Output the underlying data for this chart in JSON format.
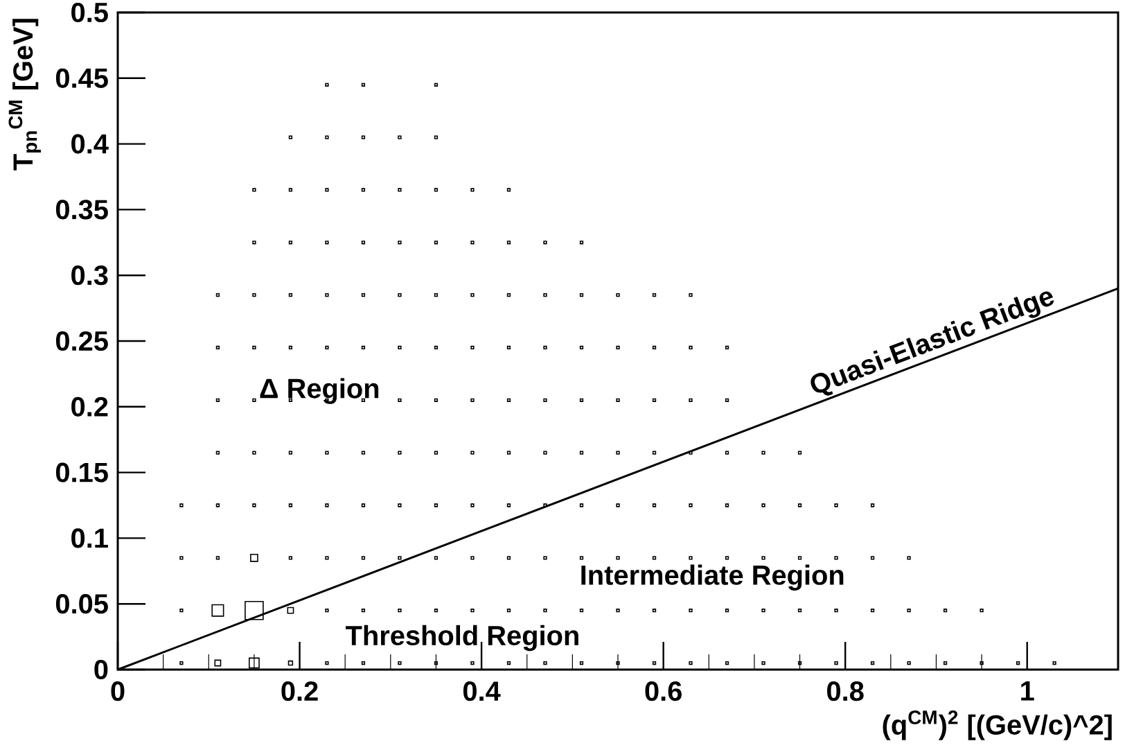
{
  "chart_data": {
    "type": "bubble",
    "xlabel": "(q$^{CM}$)$^{2}$ [(GeV/c)^2]",
    "ylabel": "T$_{pn}$$^{CM}$ [GeV]",
    "xlim": [
      0,
      1.1
    ],
    "ylim": [
      0,
      0.5
    ],
    "xticks": [
      0,
      0.2,
      0.4,
      0.6,
      0.8,
      1
    ],
    "yticks": [
      0,
      0.05,
      0.1,
      0.15,
      0.2,
      0.25,
      0.3,
      0.35,
      0.4,
      0.45,
      0.5
    ],
    "annotations": [
      "Δ Region",
      "Intermediate Region",
      "Threshold Region"
    ],
    "series": [
      {
        "type": "bubble",
        "color": "#000000",
        "marker": "square",
        "x": [
          0.07,
          0.07,
          0.07,
          0.07,
          0.11,
          0.11,
          0.11,
          0.11,
          0.11,
          0.11,
          0.11,
          0.11,
          0.15,
          0.15,
          0.15,
          0.15,
          0.15,
          0.15,
          0.15,
          0.15,
          0.15,
          0.15,
          0.19,
          0.19,
          0.19,
          0.19,
          0.19,
          0.19,
          0.19,
          0.19,
          0.19,
          0.19,
          0.19,
          0.23,
          0.23,
          0.23,
          0.23,
          0.23,
          0.23,
          0.23,
          0.23,
          0.23,
          0.23,
          0.23,
          0.23,
          0.27,
          0.27,
          0.27,
          0.27,
          0.27,
          0.27,
          0.27,
          0.27,
          0.27,
          0.27,
          0.27,
          0.27,
          0.31,
          0.31,
          0.31,
          0.31,
          0.31,
          0.31,
          0.31,
          0.31,
          0.31,
          0.31,
          0.31,
          0.35,
          0.35,
          0.35,
          0.35,
          0.35,
          0.35,
          0.35,
          0.35,
          0.35,
          0.35,
          0.35,
          0.35,
          0.39,
          0.39,
          0.39,
          0.39,
          0.39,
          0.39,
          0.39,
          0.39,
          0.39,
          0.39,
          0.43,
          0.43,
          0.43,
          0.43,
          0.43,
          0.43,
          0.43,
          0.43,
          0.43,
          0.43,
          0.47,
          0.47,
          0.47,
          0.47,
          0.47,
          0.47,
          0.47,
          0.47,
          0.47,
          0.51,
          0.51,
          0.51,
          0.51,
          0.51,
          0.51,
          0.51,
          0.51,
          0.51,
          0.55,
          0.55,
          0.55,
          0.55,
          0.55,
          0.55,
          0.55,
          0.55,
          0.59,
          0.59,
          0.59,
          0.59,
          0.59,
          0.59,
          0.59,
          0.59,
          0.63,
          0.63,
          0.63,
          0.63,
          0.63,
          0.63,
          0.63,
          0.63,
          0.67,
          0.67,
          0.67,
          0.67,
          0.67,
          0.67,
          0.67,
          0.71,
          0.71,
          0.71,
          0.71,
          0.71,
          0.75,
          0.75,
          0.75,
          0.75,
          0.75,
          0.79,
          0.79,
          0.79,
          0.79,
          0.83,
          0.83,
          0.83,
          0.83,
          0.87,
          0.87,
          0.87,
          0.91,
          0.91,
          0.95,
          0.95,
          0.99,
          1.03
        ],
        "values": [
          0.005,
          0.045,
          0.085,
          0.125,
          0.005,
          0.045,
          0.085,
          0.125,
          0.165,
          0.205,
          0.245,
          0.285,
          0.005,
          0.045,
          0.085,
          0.125,
          0.165,
          0.205,
          0.245,
          0.285,
          0.325,
          0.365,
          0.005,
          0.045,
          0.085,
          0.125,
          0.165,
          0.205,
          0.245,
          0.285,
          0.325,
          0.365,
          0.405,
          0.005,
          0.045,
          0.085,
          0.125,
          0.165,
          0.205,
          0.245,
          0.285,
          0.325,
          0.365,
          0.405,
          0.445,
          0.005,
          0.045,
          0.085,
          0.125,
          0.165,
          0.205,
          0.245,
          0.285,
          0.325,
          0.365,
          0.405,
          0.445,
          0.005,
          0.045,
          0.085,
          0.125,
          0.165,
          0.205,
          0.245,
          0.285,
          0.325,
          0.365,
          0.405,
          0.005,
          0.045,
          0.085,
          0.125,
          0.165,
          0.205,
          0.245,
          0.285,
          0.325,
          0.365,
          0.405,
          0.445,
          0.005,
          0.045,
          0.085,
          0.125,
          0.165,
          0.205,
          0.245,
          0.285,
          0.325,
          0.365,
          0.005,
          0.045,
          0.085,
          0.125,
          0.165,
          0.205,
          0.245,
          0.285,
          0.325,
          0.365,
          0.005,
          0.045,
          0.085,
          0.125,
          0.165,
          0.205,
          0.245,
          0.285,
          0.325,
          0.005,
          0.045,
          0.085,
          0.125,
          0.165,
          0.205,
          0.245,
          0.285,
          0.325,
          0.005,
          0.045,
          0.085,
          0.125,
          0.165,
          0.205,
          0.245,
          0.285,
          0.005,
          0.045,
          0.085,
          0.125,
          0.165,
          0.205,
          0.245,
          0.285,
          0.005,
          0.045,
          0.085,
          0.125,
          0.165,
          0.205,
          0.245,
          0.285,
          0.005,
          0.045,
          0.085,
          0.125,
          0.165,
          0.205,
          0.245,
          0.005,
          0.045,
          0.085,
          0.125,
          0.165,
          0.005,
          0.045,
          0.085,
          0.125,
          0.165,
          0.005,
          0.045,
          0.085,
          0.125,
          0.005,
          0.045,
          0.085,
          0.125,
          0.005,
          0.045,
          0.085,
          0.005,
          0.045,
          0.005,
          0.045,
          0.005,
          0.005
        ],
        "sizes": [
          0.02,
          0.02,
          0.02,
          0.02,
          0.1,
          0.4,
          0.02,
          0.02,
          0.02,
          0.02,
          0.02,
          0.02,
          0.3,
          1,
          0.15,
          0.02,
          0.02,
          0.02,
          0.02,
          0.02,
          0.02,
          0.02,
          0.05,
          0.1,
          0.02,
          0.02,
          0.02,
          0.02,
          0.02,
          0.02,
          0.02,
          0.02,
          0.02,
          0.02,
          0.02,
          0.02,
          0.02,
          0.02,
          0.02,
          0.02,
          0.02,
          0.02,
          0.02,
          0.02,
          0.02,
          0.02,
          0.02,
          0.02,
          0.02,
          0.02,
          0.02,
          0.02,
          0.02,
          0.02,
          0.02,
          0.02,
          0.02,
          0.02,
          0.02,
          0.02,
          0.02,
          0.02,
          0.02,
          0.02,
          0.02,
          0.02,
          0.02,
          0.02,
          0.02,
          0.02,
          0.02,
          0.02,
          0.02,
          0.02,
          0.02,
          0.02,
          0.02,
          0.02,
          0.02,
          0.02,
          0.02,
          0.02,
          0.02,
          0.02,
          0.02,
          0.02,
          0.02,
          0.02,
          0.02,
          0.02,
          0.02,
          0.02,
          0.02,
          0.02,
          0.02,
          0.02,
          0.02,
          0.02,
          0.02,
          0.02,
          0.02,
          0.02,
          0.02,
          0.02,
          0.02,
          0.02,
          0.02,
          0.02,
          0.02,
          0.02,
          0.02,
          0.02,
          0.02,
          0.02,
          0.02,
          0.02,
          0.02,
          0.02,
          0.02,
          0.02,
          0.02,
          0.02,
          0.02,
          0.02,
          0.02,
          0.02,
          0.02,
          0.02,
          0.02,
          0.02,
          0.02,
          0.02,
          0.02,
          0.02,
          0.02,
          0.02,
          0.02,
          0.02,
          0.02,
          0.02,
          0.02,
          0.02,
          0.02,
          0.02,
          0.02,
          0.02,
          0.02,
          0.02,
          0.02,
          0.02,
          0.02,
          0.02,
          0.02,
          0.02,
          0.02,
          0.02,
          0.02,
          0.02,
          0.02,
          0.02,
          0.02,
          0.02,
          0.02,
          0.02,
          0.02,
          0.02,
          0.02,
          0.02,
          0.02,
          0.02,
          0.02,
          0.02,
          0.02,
          0.02,
          0.02,
          0.02
        ]
      },
      {
        "type": "line",
        "name": "Quasi-Elastic Ridge",
        "color": "#000000",
        "marker": "none",
        "line_style": "solid",
        "x": [
          0,
          1.1
        ],
        "values": [
          0,
          0.29
        ]
      }
    ]
  }
}
